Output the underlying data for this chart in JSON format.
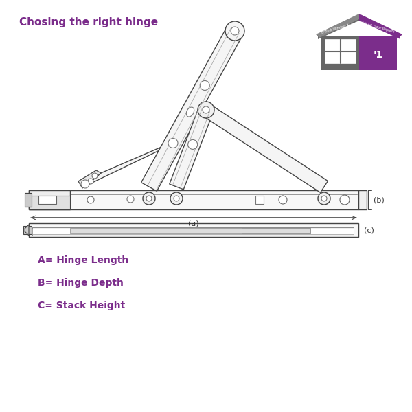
{
  "title": "Chosing the right hinge",
  "title_color": "#7B2D8B",
  "title_fontsize": 11,
  "label_a": "(a)",
  "label_b": "(b)",
  "label_c": "(c)",
  "label_A": "A= Hinge Length",
  "label_B": "B= Hinge Depth",
  "label_C": "C= Stack Height",
  "purple": "#7B2D8B",
  "bg_color": "#ffffff",
  "ec": "#444444",
  "fc_arm": "#f5f5f5"
}
